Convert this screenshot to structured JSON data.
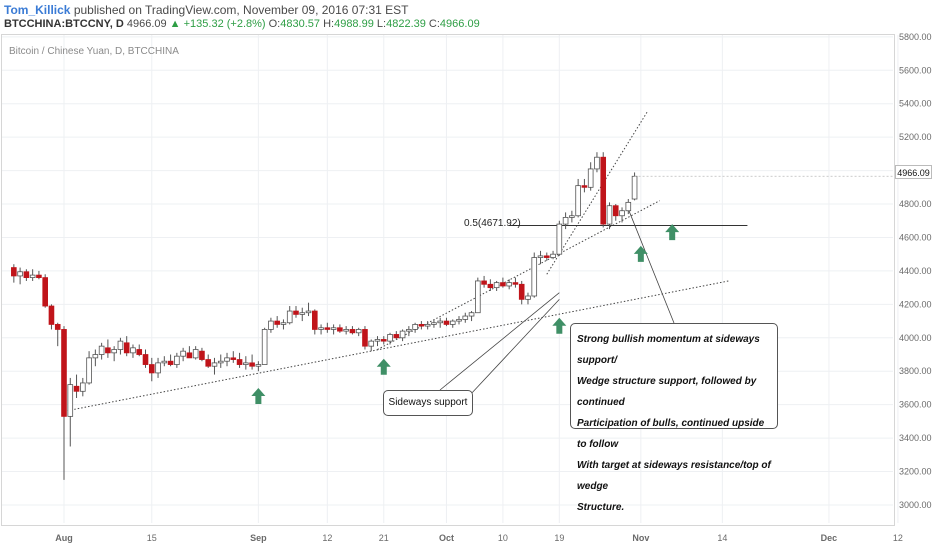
{
  "header": {
    "author": "Tom_Killick",
    "published_text": "published on TradingView.com, November 09, 2016 07:31 EST",
    "symbol": "BTCCHINA:BTCCNY, D",
    "last": "4966.09",
    "change": "▲ +135.32 (+2.8%)",
    "o_label": "O:",
    "o_val": "4830.57",
    "h_label": "H:",
    "h_val": "4988.99",
    "l_label": "L:",
    "l_val": "4822.39",
    "c_label": "C:",
    "c_val": "4966.09"
  },
  "colors": {
    "up": "#2e9e45",
    "down": "#c0141a",
    "arrow": "#3f8f66",
    "grid": "#eef0f3"
  },
  "chart_data": {
    "type": "candlestick",
    "title": "Bitcoin / Chinese Yuan, D, BTCCHINA",
    "ylim": [
      2900,
      5900
    ],
    "y_ticks": [
      3000,
      3200,
      3400,
      3600,
      3800,
      4000,
      4200,
      4400,
      4600,
      4800,
      5000,
      5200,
      5400,
      5600,
      5800
    ],
    "y_tick_labels": [
      "3000.00",
      "3200.00",
      "3400.00",
      "3600.00",
      "3800.00",
      "4000.00",
      "4200.00",
      "4400.00",
      "4600.00",
      "4800.00",
      "5000.00",
      "5200.00",
      "5400.00",
      "5600.00",
      "5800.00"
    ],
    "x_ticks": [
      {
        "day": 1,
        "label": "Aug"
      },
      {
        "day": 15,
        "label": "15"
      },
      {
        "day": 32,
        "label": "Sep"
      },
      {
        "day": 43,
        "label": "12"
      },
      {
        "day": 52,
        "label": "21"
      },
      {
        "day": 62,
        "label": "Oct"
      },
      {
        "day": 71,
        "label": "10"
      },
      {
        "day": 80,
        "label": "19"
      },
      {
        "day": 93,
        "label": "Nov"
      },
      {
        "day": 106,
        "label": "14"
      },
      {
        "day": 123,
        "label": "Dec"
      },
      {
        "day": 134,
        "label": "12"
      }
    ],
    "last_price_label": "4966.09",
    "candles": [
      {
        "d": -7,
        "o": 4420,
        "h": 4440,
        "l": 4330,
        "c": 4370
      },
      {
        "d": -6,
        "o": 4370,
        "h": 4420,
        "l": 4320,
        "c": 4395
      },
      {
        "d": -5,
        "o": 4395,
        "h": 4410,
        "l": 4340,
        "c": 4360
      },
      {
        "d": -4,
        "o": 4360,
        "h": 4410,
        "l": 4340,
        "c": 4375
      },
      {
        "d": -3,
        "o": 4375,
        "h": 4400,
        "l": 4350,
        "c": 4360
      },
      {
        "d": -2,
        "o": 4360,
        "h": 4380,
        "l": 4180,
        "c": 4190
      },
      {
        "d": -1,
        "o": 4190,
        "h": 4200,
        "l": 4050,
        "c": 4080
      },
      {
        "d": 0,
        "o": 4080,
        "h": 4090,
        "l": 3950,
        "c": 4050
      },
      {
        "d": 1,
        "o": 4050,
        "h": 4070,
        "l": 3150,
        "c": 3530
      },
      {
        "d": 2,
        "o": 3530,
        "h": 3760,
        "l": 3350,
        "c": 3720
      },
      {
        "d": 3,
        "o": 3710,
        "h": 3780,
        "l": 3640,
        "c": 3680
      },
      {
        "d": 4,
        "o": 3680,
        "h": 3760,
        "l": 3650,
        "c": 3730
      },
      {
        "d": 5,
        "o": 3730,
        "h": 3920,
        "l": 3720,
        "c": 3880
      },
      {
        "d": 6,
        "o": 3880,
        "h": 3930,
        "l": 3830,
        "c": 3900
      },
      {
        "d": 7,
        "o": 3900,
        "h": 3970,
        "l": 3870,
        "c": 3950
      },
      {
        "d": 8,
        "o": 3940,
        "h": 3990,
        "l": 3880,
        "c": 3910
      },
      {
        "d": 9,
        "o": 3910,
        "h": 3950,
        "l": 3860,
        "c": 3930
      },
      {
        "d": 10,
        "o": 3930,
        "h": 4000,
        "l": 3900,
        "c": 3980
      },
      {
        "d": 11,
        "o": 3970,
        "h": 4010,
        "l": 3890,
        "c": 3910
      },
      {
        "d": 12,
        "o": 3910,
        "h": 3960,
        "l": 3880,
        "c": 3940
      },
      {
        "d": 13,
        "o": 3930,
        "h": 3960,
        "l": 3890,
        "c": 3900
      },
      {
        "d": 14,
        "o": 3900,
        "h": 3930,
        "l": 3820,
        "c": 3840
      },
      {
        "d": 15,
        "o": 3840,
        "h": 3880,
        "l": 3740,
        "c": 3790
      },
      {
        "d": 16,
        "o": 3790,
        "h": 3880,
        "l": 3760,
        "c": 3850
      },
      {
        "d": 17,
        "o": 3850,
        "h": 3890,
        "l": 3830,
        "c": 3860
      },
      {
        "d": 18,
        "o": 3860,
        "h": 3900,
        "l": 3830,
        "c": 3840
      },
      {
        "d": 19,
        "o": 3840,
        "h": 3910,
        "l": 3820,
        "c": 3890
      },
      {
        "d": 20,
        "o": 3890,
        "h": 3940,
        "l": 3860,
        "c": 3920
      },
      {
        "d": 21,
        "o": 3910,
        "h": 3950,
        "l": 3880,
        "c": 3880
      },
      {
        "d": 22,
        "o": 3880,
        "h": 3950,
        "l": 3870,
        "c": 3930
      },
      {
        "d": 23,
        "o": 3920,
        "h": 3940,
        "l": 3860,
        "c": 3870
      },
      {
        "d": 24,
        "o": 3870,
        "h": 3900,
        "l": 3820,
        "c": 3830
      },
      {
        "d": 25,
        "o": 3830,
        "h": 3880,
        "l": 3780,
        "c": 3850
      },
      {
        "d": 26,
        "o": 3850,
        "h": 3900,
        "l": 3820,
        "c": 3860
      },
      {
        "d": 27,
        "o": 3860,
        "h": 3910,
        "l": 3830,
        "c": 3880
      },
      {
        "d": 28,
        "o": 3880,
        "h": 3920,
        "l": 3850,
        "c": 3870
      },
      {
        "d": 29,
        "o": 3870,
        "h": 3910,
        "l": 3820,
        "c": 3840
      },
      {
        "d": 30,
        "o": 3840,
        "h": 3890,
        "l": 3810,
        "c": 3850
      },
      {
        "d": 31,
        "o": 3850,
        "h": 3900,
        "l": 3810,
        "c": 3830
      },
      {
        "d": 32,
        "o": 3830,
        "h": 3860,
        "l": 3800,
        "c": 3840
      },
      {
        "d": 33,
        "o": 3840,
        "h": 4060,
        "l": 3840,
        "c": 4050
      },
      {
        "d": 34,
        "o": 4050,
        "h": 4120,
        "l": 4030,
        "c": 4100
      },
      {
        "d": 35,
        "o": 4100,
        "h": 4130,
        "l": 4060,
        "c": 4080
      },
      {
        "d": 36,
        "o": 4080,
        "h": 4110,
        "l": 4050,
        "c": 4090
      },
      {
        "d": 37,
        "o": 4090,
        "h": 4190,
        "l": 4080,
        "c": 4160
      },
      {
        "d": 38,
        "o": 4160,
        "h": 4190,
        "l": 4120,
        "c": 4140
      },
      {
        "d": 39,
        "o": 4140,
        "h": 4180,
        "l": 4100,
        "c": 4150
      },
      {
        "d": 40,
        "o": 4150,
        "h": 4210,
        "l": 4130,
        "c": 4160
      },
      {
        "d": 41,
        "o": 4160,
        "h": 4170,
        "l": 4020,
        "c": 4050
      },
      {
        "d": 42,
        "o": 4050,
        "h": 4080,
        "l": 4020,
        "c": 4060
      },
      {
        "d": 43,
        "o": 4060,
        "h": 4090,
        "l": 4030,
        "c": 4050
      },
      {
        "d": 44,
        "o": 4050,
        "h": 4080,
        "l": 4020,
        "c": 4060
      },
      {
        "d": 45,
        "o": 4060,
        "h": 4080,
        "l": 4030,
        "c": 4040
      },
      {
        "d": 46,
        "o": 4040,
        "h": 4070,
        "l": 4020,
        "c": 4050
      },
      {
        "d": 47,
        "o": 4050,
        "h": 4070,
        "l": 4020,
        "c": 4030
      },
      {
        "d": 48,
        "o": 4030,
        "h": 4060,
        "l": 4010,
        "c": 4050
      },
      {
        "d": 49,
        "o": 4050,
        "h": 4070,
        "l": 3930,
        "c": 3950
      },
      {
        "d": 50,
        "o": 3950,
        "h": 3990,
        "l": 3920,
        "c": 3980
      },
      {
        "d": 51,
        "o": 3980,
        "h": 4010,
        "l": 3950,
        "c": 3990
      },
      {
        "d": 52,
        "o": 3990,
        "h": 4010,
        "l": 3960,
        "c": 3980
      },
      {
        "d": 53,
        "o": 3980,
        "h": 4030,
        "l": 3960,
        "c": 4020
      },
      {
        "d": 54,
        "o": 4020,
        "h": 4040,
        "l": 3990,
        "c": 4000
      },
      {
        "d": 55,
        "o": 4000,
        "h": 4050,
        "l": 3980,
        "c": 4040
      },
      {
        "d": 56,
        "o": 4040,
        "h": 4070,
        "l": 4010,
        "c": 4050
      },
      {
        "d": 57,
        "o": 4050,
        "h": 4090,
        "l": 4030,
        "c": 4080
      },
      {
        "d": 58,
        "o": 4080,
        "h": 4100,
        "l": 4050,
        "c": 4070
      },
      {
        "d": 59,
        "o": 4070,
        "h": 4100,
        "l": 4050,
        "c": 4080
      },
      {
        "d": 60,
        "o": 4080,
        "h": 4110,
        "l": 4060,
        "c": 4090
      },
      {
        "d": 61,
        "o": 4090,
        "h": 4120,
        "l": 4060,
        "c": 4100
      },
      {
        "d": 62,
        "o": 4100,
        "h": 4120,
        "l": 4070,
        "c": 4080
      },
      {
        "d": 63,
        "o": 4080,
        "h": 4110,
        "l": 4060,
        "c": 4100
      },
      {
        "d": 64,
        "o": 4100,
        "h": 4130,
        "l": 4080,
        "c": 4110
      },
      {
        "d": 65,
        "o": 4110,
        "h": 4150,
        "l": 4090,
        "c": 4130
      },
      {
        "d": 66,
        "o": 4130,
        "h": 4160,
        "l": 4100,
        "c": 4150
      },
      {
        "d": 67,
        "o": 4150,
        "h": 4360,
        "l": 4150,
        "c": 4340
      },
      {
        "d": 68,
        "o": 4340,
        "h": 4370,
        "l": 4300,
        "c": 4320
      },
      {
        "d": 69,
        "o": 4320,
        "h": 4350,
        "l": 4280,
        "c": 4300
      },
      {
        "d": 70,
        "o": 4300,
        "h": 4340,
        "l": 4280,
        "c": 4330
      },
      {
        "d": 71,
        "o": 4330,
        "h": 4360,
        "l": 4300,
        "c": 4310
      },
      {
        "d": 72,
        "o": 4310,
        "h": 4350,
        "l": 4290,
        "c": 4330
      },
      {
        "d": 73,
        "o": 4330,
        "h": 4360,
        "l": 4300,
        "c": 4320
      },
      {
        "d": 74,
        "o": 4320,
        "h": 4340,
        "l": 4200,
        "c": 4230
      },
      {
        "d": 75,
        "o": 4230,
        "h": 4270,
        "l": 4200,
        "c": 4250
      },
      {
        "d": 76,
        "o": 4250,
        "h": 4510,
        "l": 4240,
        "c": 4480
      },
      {
        "d": 77,
        "o": 4480,
        "h": 4520,
        "l": 4440,
        "c": 4490
      },
      {
        "d": 78,
        "o": 4490,
        "h": 4510,
        "l": 4460,
        "c": 4480
      },
      {
        "d": 79,
        "o": 4480,
        "h": 4520,
        "l": 4470,
        "c": 4500
      },
      {
        "d": 80,
        "o": 4500,
        "h": 4700,
        "l": 4490,
        "c": 4680
      },
      {
        "d": 81,
        "o": 4680,
        "h": 4750,
        "l": 4650,
        "c": 4720
      },
      {
        "d": 82,
        "o": 4720,
        "h": 4760,
        "l": 4690,
        "c": 4730
      },
      {
        "d": 83,
        "o": 4730,
        "h": 4950,
        "l": 4720,
        "c": 4910
      },
      {
        "d": 84,
        "o": 4910,
        "h": 4950,
        "l": 4870,
        "c": 4900
      },
      {
        "d": 85,
        "o": 4900,
        "h": 5050,
        "l": 4880,
        "c": 5010
      },
      {
        "d": 86,
        "o": 5010,
        "h": 5110,
        "l": 4990,
        "c": 5080
      },
      {
        "d": 87,
        "o": 5080,
        "h": 5110,
        "l": 4660,
        "c": 4680
      },
      {
        "d": 88,
        "o": 4680,
        "h": 4810,
        "l": 4650,
        "c": 4790
      },
      {
        "d": 89,
        "o": 4790,
        "h": 4800,
        "l": 4700,
        "c": 4730
      },
      {
        "d": 90,
        "o": 4730,
        "h": 4780,
        "l": 4690,
        "c": 4760
      },
      {
        "d": 91,
        "o": 4760,
        "h": 4830,
        "l": 4740,
        "c": 4810
      },
      {
        "d": 92,
        "o": 4830,
        "h": 4989,
        "l": 4822,
        "c": 4966
      }
    ],
    "annotations": [
      {
        "text": "0.5(4671.92)",
        "type": "fib_level",
        "price": 4671.92
      },
      {
        "text": "Sideways support",
        "type": "callout"
      },
      {
        "type": "callout",
        "lines": [
          "Strong bullish momentum at sideways support/",
          "Wedge structure support, followed by continued",
          "Participation of bulls, continued upside to follow",
          "With target at sideways resistance/top of wedge",
          "Structure."
        ]
      }
    ]
  }
}
